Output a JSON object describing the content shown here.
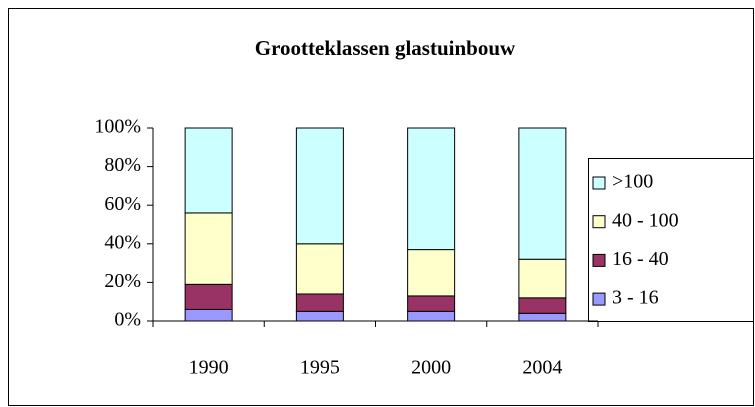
{
  "chart_data": {
    "type": "stacked_bar_100",
    "title": "Grootteklassen glastuinbouw",
    "categories": [
      "1990",
      "1995",
      "2000",
      "2004"
    ],
    "series": [
      {
        "name": "3 - 16",
        "color": "#9999ff",
        "values": [
          6,
          5,
          5,
          4
        ]
      },
      {
        "name": "16 - 40",
        "color": "#993366",
        "values": [
          13,
          9,
          8,
          8
        ]
      },
      {
        "name": "40 - 100",
        "color": "#ffffcc",
        "values": [
          37,
          26,
          24,
          20
        ]
      },
      {
        "name": ">100",
        "color": "#ccffff",
        "values": [
          44,
          60,
          63,
          68
        ]
      }
    ],
    "ylim": [
      0,
      100
    ],
    "yticks": [
      {
        "value": 0,
        "label": "0%"
      },
      {
        "value": 20,
        "label": "20%"
      },
      {
        "value": 40,
        "label": "40%"
      },
      {
        "value": 60,
        "label": "60%"
      },
      {
        "value": 80,
        "label": "80%"
      },
      {
        "value": 100,
        "label": "100%"
      }
    ],
    "legend": "right"
  }
}
